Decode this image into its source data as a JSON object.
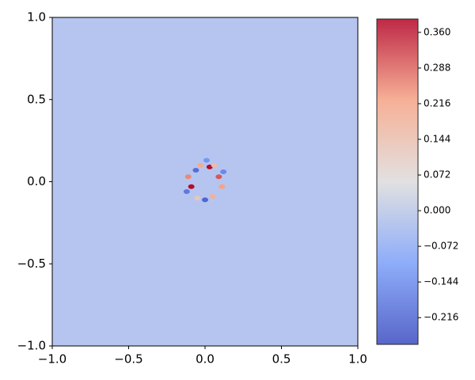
{
  "chart_data": {
    "type": "contourf",
    "colormap": "coolwarm",
    "xlim": [
      -1,
      1
    ],
    "ylim": [
      -1,
      1
    ],
    "xticks": [
      {
        "value": -1,
        "label": "−1.0"
      },
      {
        "value": -0.5,
        "label": "−0.5"
      },
      {
        "value": 0,
        "label": "0.0"
      },
      {
        "value": 0.5,
        "label": "0.5"
      },
      {
        "value": 1,
        "label": "1.0"
      }
    ],
    "yticks": [
      {
        "value": -1,
        "label": "−1.0"
      },
      {
        "value": -0.5,
        "label": "−0.5"
      },
      {
        "value": 0,
        "label": "0.0"
      },
      {
        "value": 0.5,
        "label": "0.5"
      },
      {
        "value": 1,
        "label": "1.0"
      }
    ],
    "clim": [
      -0.27,
      0.387
    ],
    "colorbar_ticks": [
      {
        "value": -0.216,
        "label": "−0.216"
      },
      {
        "value": -0.144,
        "label": "−0.144"
      },
      {
        "value": -0.072,
        "label": "−0.072"
      },
      {
        "value": 0,
        "label": "0.000"
      },
      {
        "value": 0.072,
        "label": "0.072"
      },
      {
        "value": 0.144,
        "label": "0.144"
      },
      {
        "value": 0.216,
        "label": "0.216"
      },
      {
        "value": 0.288,
        "label": "0.288"
      },
      {
        "value": 0.36,
        "label": "0.360"
      }
    ],
    "background_value": -0.03,
    "peaks": {
      "x": [
        0.03,
        -0.09,
        0.09,
        -0.11,
        -0.03,
        0.11,
        0.05,
        -0.06,
        0.0,
        0.12,
        -0.12,
        0.06,
        -0.05,
        0.01
      ],
      "y": [
        0.09,
        -0.03,
        0.03,
        0.03,
        0.1,
        -0.03,
        -0.09,
        0.07,
        -0.11,
        0.06,
        -0.06,
        0.1,
        -0.1,
        0.13
      ],
      "values": [
        0.38,
        0.38,
        0.3,
        0.25,
        0.2,
        0.22,
        0.18,
        -0.2,
        -0.22,
        -0.15,
        -0.18,
        0.15,
        0.12,
        -0.12
      ]
    }
  }
}
